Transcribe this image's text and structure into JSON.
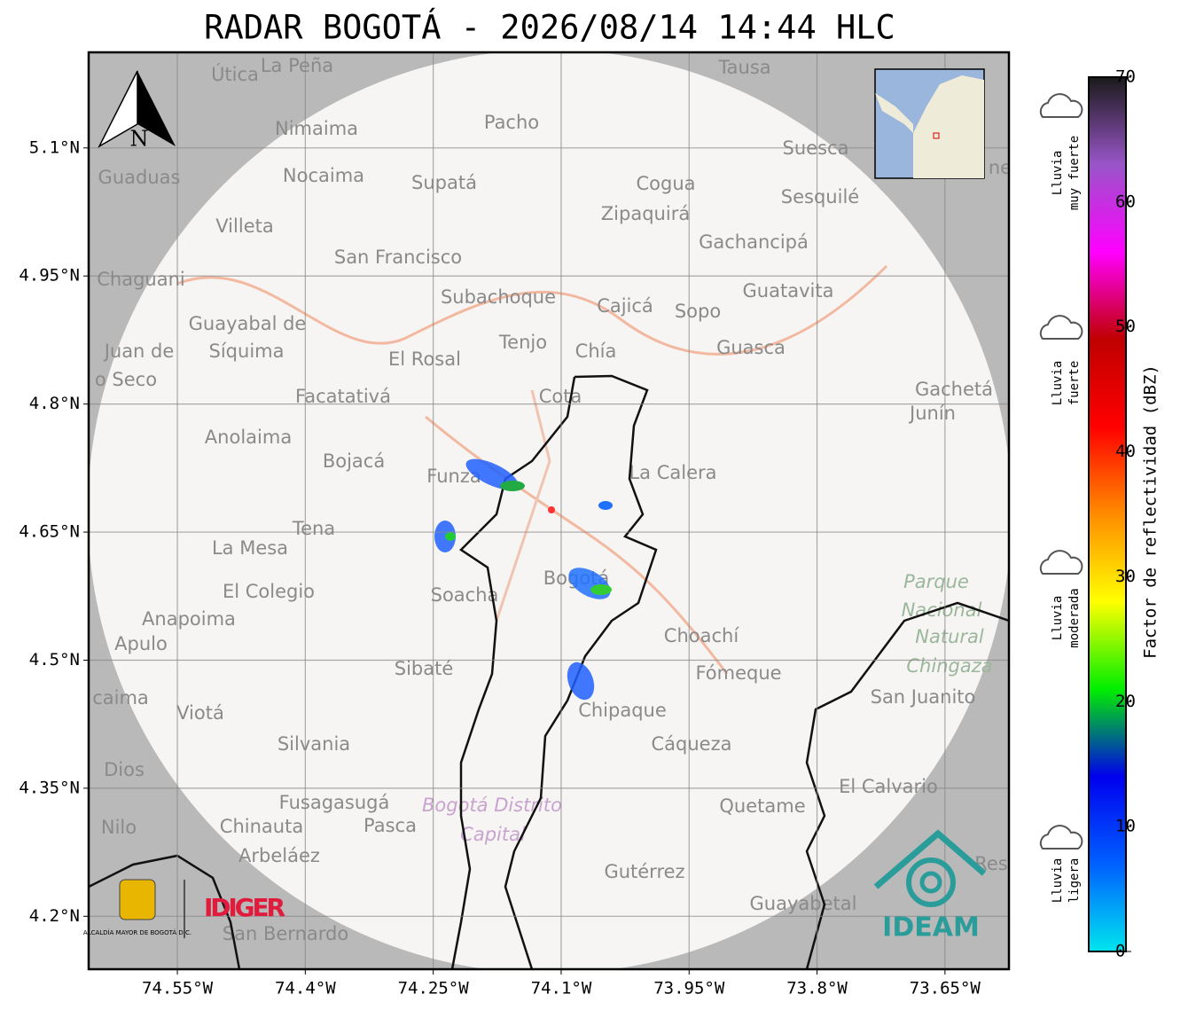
{
  "header": {
    "title": "RADAR BOGOTÁ - 2026/08/14 14:44 HLC"
  },
  "map": {
    "xlim": [
      -74.654,
      -73.575
    ],
    "ylim": [
      4.138,
      5.212
    ],
    "xticks": [
      {
        "value": -74.55,
        "label": "74.55°W"
      },
      {
        "value": -74.4,
        "label": "74.4°W"
      },
      {
        "value": -74.25,
        "label": "74.25°W"
      },
      {
        "value": -74.1,
        "label": "74.1°W"
      },
      {
        "value": -73.95,
        "label": "73.95°W"
      },
      {
        "value": -73.8,
        "label": "73.8°W"
      },
      {
        "value": -73.65,
        "label": "73.65°W"
      }
    ],
    "yticks": [
      {
        "value": 5.1,
        "label": "5.1°N"
      },
      {
        "value": 4.95,
        "label": "4.95°N"
      },
      {
        "value": 4.8,
        "label": "4.8°N"
      },
      {
        "value": 4.65,
        "label": "4.65°N"
      },
      {
        "value": 4.5,
        "label": "4.5°N"
      },
      {
        "value": 4.35,
        "label": "4.35°N"
      },
      {
        "value": 4.2,
        "label": "4.2°N"
      }
    ],
    "grid": true,
    "north_label": "N",
    "places": [
      "Útica",
      "La Peña",
      "Tausa",
      "Pacho",
      "Nimaima",
      "Guaduas",
      "Nocaima",
      "Supatá",
      "Cogua",
      "Suesca",
      "Sesquilé",
      "Zipaquirá",
      "Villeta",
      "Gachancipá",
      "San Francisco",
      "Chaguani",
      "Guatavita",
      "Subachoque",
      "Cajicá",
      "Sopo",
      "Guayabal de",
      "Síquima",
      "Juan de",
      "o Seco",
      "Tenjo",
      "Chía",
      "Guasca",
      "El Rosal",
      "Facatativá",
      "Cota",
      "Gachetá",
      "Junín",
      "Anolaima",
      "Bojacá",
      "Funza",
      "La Calera",
      "Tena",
      "La Mesa",
      "Bogotá",
      "El Colegio",
      "Soacha",
      "Parque",
      "Nacional",
      "Natural",
      "Chingaza",
      "Anapoima",
      "Apulo",
      "Choachí",
      "Sibaté",
      "Fómeque",
      "San Juanito",
      "caima",
      "Chipaque",
      "Viotá",
      "Silvania",
      "Cáqueza",
      "Dios",
      "El Calvario",
      "Fusagasugá",
      "Bogotá Distrito",
      "Capital",
      "Quetame",
      "Nilo",
      "Chinauta",
      "Pasca",
      "Arbeláez",
      "Gutérrez",
      "Guayabetal",
      "San Bernardo",
      "Res",
      "ne"
    ],
    "logos": {
      "alcaldia": "ALCALDÍA MAYOR DE BOGOTÁ D.C.",
      "idiger": "IDIGER",
      "ideam": "IDEAM"
    }
  },
  "colorbar": {
    "label": "Factor de reflectividad (dBZ)",
    "lim": [
      0,
      70
    ],
    "ticks": [
      0,
      10,
      20,
      30,
      40,
      50,
      60,
      70
    ],
    "colors": [
      "#00e5ee",
      "#0060ff",
      "#0000ee",
      "#00ee00",
      "#ffff00",
      "#ff8c00",
      "#ff0000",
      "#c00000",
      "#ff00ff",
      "#9955c9",
      "#1a1a1a"
    ],
    "categories": [
      [
        "Lluvia",
        "ligera"
      ],
      [
        "Lluvia",
        "moderada"
      ],
      [
        "Lluvia",
        "fuerte"
      ],
      [
        "Lluvia",
        "muy fuerte"
      ]
    ]
  }
}
